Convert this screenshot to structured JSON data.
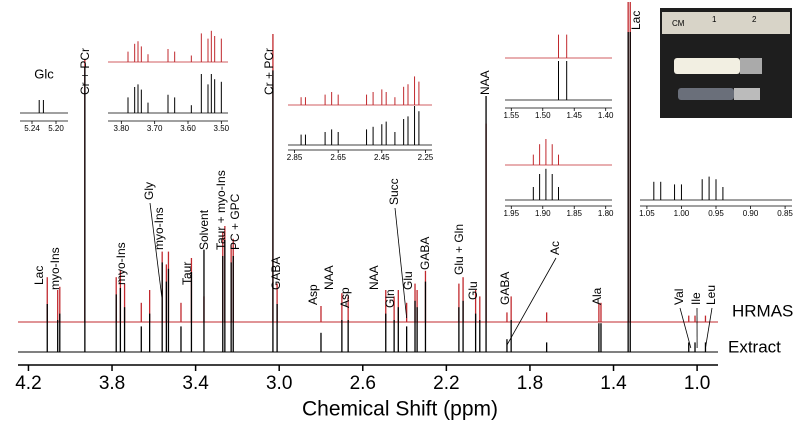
{
  "chart_data": {
    "type": "spectrum",
    "x_label": "Chemical Shift (ppm)",
    "xlim": [
      4.25,
      0.9
    ],
    "xticks": [
      4.2,
      3.8,
      3.4,
      {
        "value": 3.0,
        "label": "3.0"
      },
      2.6,
      2.2,
      1.8,
      1.4,
      {
        "value": 1.0,
        "label": "1.0"
      }
    ],
    "ylim": [
      0,
      100
    ],
    "x": [
      4.11,
      4.06,
      4.05,
      3.93,
      3.78,
      3.76,
      3.74,
      3.66,
      3.62,
      3.56,
      3.54,
      3.53,
      3.47,
      3.42,
      3.36,
      3.27,
      3.26,
      3.23,
      3.22,
      3.03,
      3.01,
      2.8,
      2.7,
      2.67,
      2.49,
      2.45,
      2.43,
      2.39,
      2.35,
      2.34,
      2.3,
      2.14,
      2.12,
      2.06,
      2.04,
      2.01,
      1.91,
      1.89,
      1.72,
      1.47,
      1.46,
      1.33,
      1.32,
      1.04,
      1.01,
      0.96
    ],
    "series": [
      {
        "name": "HRMAS",
        "color": "#c0282d",
        "values": [
          14,
          10,
          11,
          82,
          14,
          16,
          12,
          6,
          10,
          22,
          18,
          22,
          6,
          20,
          8,
          28,
          30,
          24,
          26,
          90,
          12,
          5,
          9,
          8,
          10,
          8,
          10,
          6,
          12,
          10,
          16,
          12,
          14,
          10,
          8,
          62,
          3,
          8,
          3,
          6,
          6,
          100,
          100,
          2,
          2,
          2
        ]
      },
      {
        "name": "Extract",
        "color": "#000000",
        "values": [
          15,
          10,
          12,
          89,
          18,
          20,
          14,
          8,
          12,
          28,
          22,
          26,
          8,
          25,
          32,
          30,
          35,
          28,
          30,
          88,
          15,
          6,
          10,
          10,
          12,
          10,
          14,
          8,
          16,
          14,
          22,
          14,
          16,
          12,
          10,
          80,
          4,
          10,
          3,
          9,
          9,
          100,
          100,
          3,
          3,
          3
        ]
      }
    ],
    "annotations": [
      {
        "text": "Lac",
        "x": 4.11
      },
      {
        "text": "myo-Ins",
        "x": 4.05
      },
      {
        "text": "Cr + PCr",
        "x": 3.93
      },
      {
        "text": "myo-Ins",
        "x": 3.74
      },
      {
        "text": "Gly",
        "x": 3.56
      },
      {
        "text": "myo-Ins",
        "x": 3.53
      },
      {
        "text": "Taur",
        "x": 3.42
      },
      {
        "text": "Solvent",
        "x": 3.36
      },
      {
        "text": "Taur + myo-Ins",
        "x": 3.27
      },
      {
        "text": "PC + GPC",
        "x": 3.22
      },
      {
        "text": "Cr + PCr",
        "x": 3.03
      },
      {
        "text": "GABA",
        "x": 3.01
      },
      {
        "text": "Asp",
        "x": 2.8
      },
      {
        "text": "NAA",
        "x": 2.7
      },
      {
        "text": "Asp",
        "x": 2.67
      },
      {
        "text": "NAA",
        "x": 2.49
      },
      {
        "text": "Gln",
        "x": 2.45
      },
      {
        "text": "Succ",
        "x": 2.39
      },
      {
        "text": "Glu",
        "x": 2.35
      },
      {
        "text": "GABA",
        "x": 2.3
      },
      {
        "text": "Glu + Gln",
        "x": 2.12
      },
      {
        "text": "Glu",
        "x": 2.06
      },
      {
        "text": "NAA",
        "x": 2.01
      },
      {
        "text": "GABA",
        "x": 1.89
      },
      {
        "text": "Ac",
        "x": 1.91
      },
      {
        "text": "Ala",
        "x": 1.47
      },
      {
        "text": "Lac",
        "x": 1.33
      },
      {
        "text": "Val",
        "x": 1.03
      },
      {
        "text": "Ile",
        "x": 1.0
      },
      {
        "text": "Leu",
        "x": 0.96
      }
    ],
    "insets": [
      {
        "label": "Glc",
        "xlim": [
          5.26,
          5.18
        ],
        "xticks": [
          5.24,
          {
            "value": 5.2,
            "label": "5.20"
          }
        ],
        "x": [
          5.228,
          5.221
        ],
        "series": [
          {
            "name": "Extract",
            "values": [
              10,
              10
            ]
          }
        ]
      },
      {
        "xlim": [
          3.84,
          3.48
        ],
        "xticks": [
          {
            "value": 3.8,
            "label": "3.80"
          },
          {
            "value": 3.7,
            "label": "3.70"
          },
          {
            "value": 3.6,
            "label": "3.60"
          },
          {
            "value": 3.5,
            "label": "3.50"
          }
        ],
        "x": [
          3.78,
          3.76,
          3.75,
          3.74,
          3.72,
          3.66,
          3.64,
          3.59,
          3.56,
          3.54,
          3.53,
          3.52,
          3.5
        ],
        "series": [
          {
            "name": "HRMAS",
            "values": [
              8,
              14,
              16,
              12,
              6,
              10,
              8,
              5,
              22,
              18,
              24,
              20,
              18
            ]
          },
          {
            "name": "Extract",
            "values": [
              12,
              20,
              22,
              18,
              8,
              14,
              12,
              6,
              30,
              22,
              30,
              26,
              24
            ]
          }
        ]
      },
      {
        "xlim": [
          2.88,
          2.22
        ],
        "xticks": [
          2.85,
          2.65,
          2.45,
          2.25
        ],
        "x": [
          2.82,
          2.8,
          2.71,
          2.68,
          2.65,
          2.52,
          2.49,
          2.45,
          2.43,
          2.39,
          2.35,
          2.33,
          2.3,
          2.28
        ],
        "series": [
          {
            "name": "HRMAS",
            "values": [
              6,
              6,
              8,
              10,
              8,
              8,
              10,
              12,
              10,
              6,
              14,
              16,
              22,
              18
            ]
          },
          {
            "name": "Extract",
            "values": [
              8,
              8,
              10,
              12,
              10,
              12,
              14,
              16,
              18,
              10,
              20,
              22,
              30,
              26
            ]
          }
        ]
      },
      {
        "xlim": [
          1.56,
          1.39
        ],
        "xticks": [
          1.55,
          {
            "value": 1.5,
            "label": "1.50"
          },
          1.45,
          {
            "value": 1.4,
            "label": "1.40"
          }
        ],
        "x": [
          1.475,
          1.462
        ],
        "series": [
          {
            "name": "HRMAS",
            "values": [
              18,
              18
            ]
          },
          {
            "name": "Extract",
            "values": [
              30,
              30
            ]
          }
        ]
      },
      {
        "xlim": [
          1.96,
          1.79
        ],
        "xticks": [
          1.95,
          {
            "value": 1.9,
            "label": "1.90"
          },
          1.85,
          {
            "value": 1.8,
            "label": "1.80"
          }
        ],
        "x": [
          1.915,
          1.905,
          1.895,
          1.885,
          1.875
        ],
        "series": [
          {
            "name": "HRMAS",
            "values": [
              8,
              16,
              20,
              16,
              8
            ]
          },
          {
            "name": "Extract",
            "values": [
              10,
              20,
              24,
              20,
              10
            ]
          }
        ]
      },
      {
        "xlim": [
          1.06,
          0.84
        ],
        "xticks": [
          1.05,
          {
            "value": 1.0,
            "label": "1.00"
          },
          0.95,
          {
            "value": 0.9,
            "label": "0.90"
          },
          0.85
        ],
        "x": [
          1.04,
          1.03,
          1.01,
          1.0,
          0.97,
          0.96,
          0.95,
          0.94
        ],
        "series": [
          {
            "name": "Extract",
            "values": [
              14,
              14,
              12,
              12,
              16,
              18,
              16,
              10
            ]
          }
        ]
      }
    ]
  },
  "photo": {
    "ruler_labels": [
      "CM",
      "1",
      "2"
    ]
  }
}
